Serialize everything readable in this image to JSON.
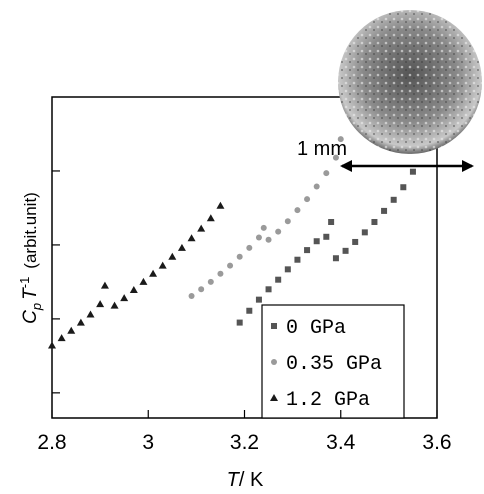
{
  "chart_data": {
    "type": "scatter",
    "ylabel": {
      "main": "C",
      "sub": "p",
      "main2": "T",
      "sup": "-1",
      "unit": "(arbit.unit)"
    },
    "xlabel": {
      "var": "T",
      "unit": "/ K"
    },
    "scale_label": "1 mm",
    "xlim": [
      2.8,
      3.6
    ],
    "xticks": [
      2.8,
      3,
      3.2,
      3.4,
      3.6
    ],
    "ylim": [
      0.66,
      5
    ],
    "yticks": [
      1,
      2,
      3,
      4
    ],
    "series": [
      {
        "name": "0 GPa",
        "color": "#555555",
        "marker": "square",
        "x": [
          3.19,
          3.21,
          3.23,
          3.25,
          3.27,
          3.29,
          3.31,
          3.33,
          3.35,
          3.37,
          3.38,
          3.39,
          3.41,
          3.43,
          3.45,
          3.47,
          3.49,
          3.51,
          3.53,
          3.55
        ],
        "values": [
          1.95,
          2.11,
          2.26,
          2.4,
          2.53,
          2.67,
          2.8,
          2.93,
          3.05,
          3.11,
          3.31,
          2.82,
          2.92,
          3.04,
          3.17,
          3.31,
          3.46,
          3.61,
          3.78,
          3.99
        ]
      },
      {
        "name": "0.35 GPa",
        "color": "#9a9a9a",
        "marker": "circle",
        "x": [
          3.09,
          3.11,
          3.13,
          3.15,
          3.17,
          3.19,
          3.21,
          3.23,
          3.24,
          3.25,
          3.27,
          3.29,
          3.31,
          3.33,
          3.35,
          3.37,
          3.39,
          3.4
        ],
        "values": [
          2.31,
          2.4,
          2.5,
          2.61,
          2.72,
          2.84,
          2.96,
          3.1,
          3.23,
          3.07,
          3.18,
          3.32,
          3.47,
          3.62,
          3.79,
          3.97,
          4.18,
          4.43
        ]
      },
      {
        "name": "1.2 GPa",
        "color": "#1a1a1a",
        "marker": "triangle",
        "x": [
          2.8,
          2.82,
          2.84,
          2.86,
          2.88,
          2.9,
          2.91,
          2.93,
          2.95,
          2.97,
          2.99,
          3.01,
          3.03,
          3.05,
          3.07,
          3.09,
          3.11,
          3.13,
          3.15
        ],
        "values": [
          1.64,
          1.74,
          1.84,
          1.95,
          2.06,
          2.2,
          2.45,
          2.18,
          2.28,
          2.39,
          2.5,
          2.61,
          2.72,
          2.84,
          2.96,
          3.09,
          3.22,
          3.36,
          3.53
        ]
      }
    ]
  }
}
